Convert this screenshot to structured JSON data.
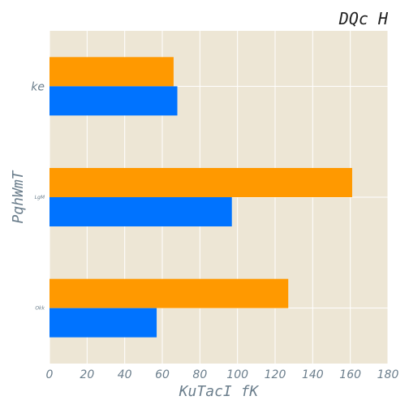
{
  "chart_data": {
    "type": "bar",
    "orientation": "horizontal",
    "title": "DQc  H",
    "xlabel": "KuTacI  fK",
    "ylabel": "PqhWmT",
    "categories": [
      "ke",
      "LgM",
      "Okk"
    ],
    "category_label_sizes": [
      "normal",
      "tiny",
      "tiny"
    ],
    "series": [
      {
        "color": "#ff9900",
        "values": [
          66,
          161,
          127
        ]
      },
      {
        "color": "#0073ff",
        "values": [
          68,
          97,
          57
        ]
      }
    ],
    "xlim": [
      0,
      180
    ],
    "xticks": [
      "0",
      "20",
      "40",
      "60",
      "80",
      "100",
      "120",
      "140",
      "160",
      "180"
    ],
    "grid": true,
    "background": "#ede6d5",
    "grid_color": "#ffffff"
  }
}
